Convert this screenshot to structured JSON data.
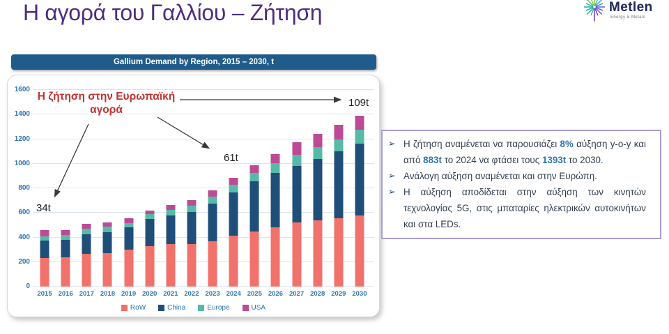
{
  "page": {
    "title": "Η αγορά του Γαλλίου – Ζήτηση"
  },
  "logo": {
    "name": "Metlen",
    "tagline": "Energy & Metals"
  },
  "chart": {
    "header": "Gallium Demand by Region, 2015 – 2030, t"
  },
  "chart_data": {
    "type": "bar",
    "stacked": true,
    "title": "Gallium Demand by Region, 2015 – 2030, t",
    "categories": [
      "2015",
      "2016",
      "2017",
      "2018",
      "2019",
      "2020",
      "2021",
      "2022",
      "2023",
      "2024",
      "2025",
      "2026",
      "2027",
      "2028",
      "2029",
      "2030"
    ],
    "series": [
      {
        "name": "RoW",
        "color": "#F0726B",
        "values": [
          233,
          240,
          265,
          275,
          298,
          330,
          345,
          345,
          370,
          415,
          450,
          485,
          520,
          540,
          555,
          580
        ]
      },
      {
        "name": "China",
        "color": "#1F4E79",
        "values": [
          142,
          138,
          160,
          168,
          185,
          220,
          232,
          265,
          305,
          350,
          405,
          440,
          460,
          500,
          545,
          585
        ]
      },
      {
        "name": "Europe",
        "color": "#56BBA6",
        "values": [
          34,
          40,
          45,
          45,
          35,
          38,
          48,
          48,
          55,
          61,
          68,
          78,
          90,
          95,
          100,
          109
        ]
      },
      {
        "name": "USA",
        "color": "#BC4B96",
        "values": [
          51,
          44,
          42,
          33,
          37,
          30,
          40,
          45,
          55,
          57,
          62,
          77,
          105,
          110,
          115,
          119
        ]
      }
    ],
    "ylim": [
      0,
      1600
    ],
    "ytick_step": 200,
    "grid": true,
    "legend_position": "bottom",
    "annotations": {
      "europe_2015": "34t",
      "europe_2024": "61t",
      "europe_2030": "109t"
    }
  },
  "annotations": {
    "europe_note_line1": "Η ζήτηση στην Ευρωπαϊκή",
    "europe_note_line2": "αγορά",
    "label_2015": "34t",
    "label_2024": "61t",
    "label_2030": "109t"
  },
  "infobox": {
    "bullets": [
      {
        "segments": [
          {
            "t": "Η ζήτηση αναμένεται να παρουσιάζει "
          },
          {
            "t": "8%",
            "hl": true
          },
          {
            "t": " αύξηση y-o-y και από "
          },
          {
            "t": "883t",
            "hl": true
          },
          {
            "t": " το 2024 να φτάσει τους "
          },
          {
            "t": "1393t",
            "hl": true
          },
          {
            "t": " το 2030."
          }
        ]
      },
      {
        "segments": [
          {
            "t": "Ανάλογη αύξηση αναμένεται και στην Ευρώπη."
          }
        ]
      },
      {
        "segments": [
          {
            "t": "Η αύξηση αποδίδεται στην αύξηση των κινητών τεχνολογίας 5G, στις μπαταρίες ηλεκτρικών αυτοκινήτων και στα LEDs."
          }
        ]
      }
    ],
    "bullet_glyph": "➢",
    "highlight_color": "#2E74B5"
  },
  "colors": {
    "title_purple": "#4F2D7F",
    "header_bar_blue": "#1F5C8C",
    "axis_label_blue": "#2E74B5",
    "annotation_red": "#C23232",
    "infobox_border_purple": "#A89CD6"
  }
}
